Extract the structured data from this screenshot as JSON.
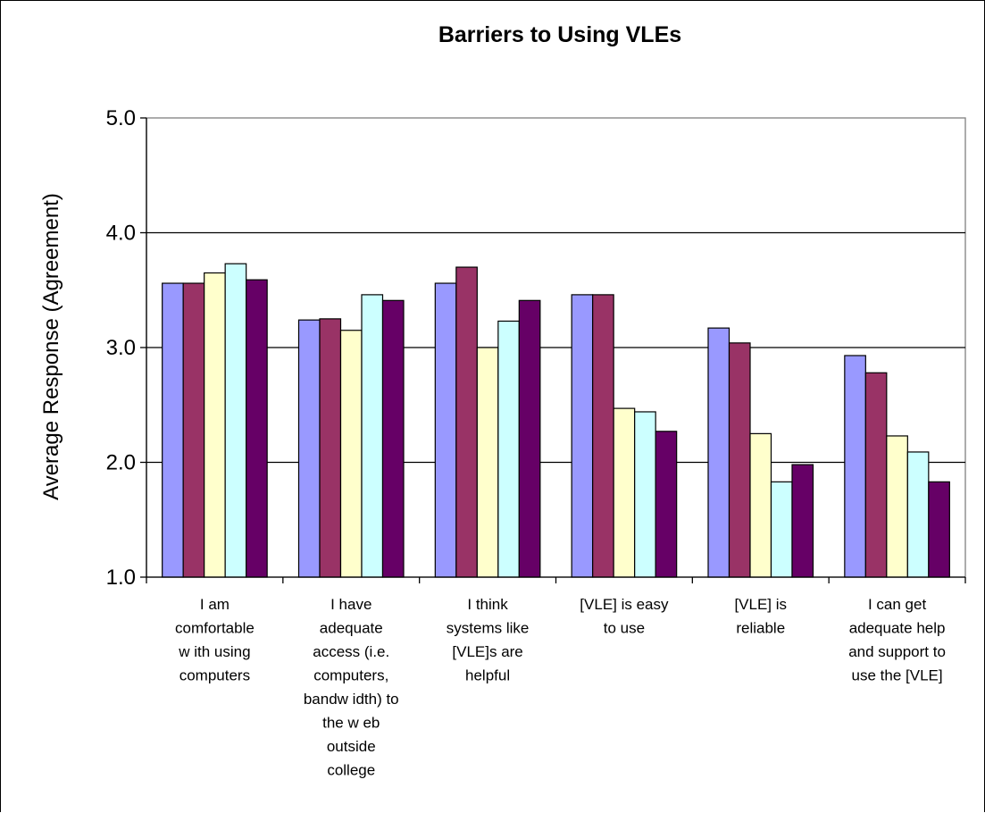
{
  "chart_data": {
    "type": "bar",
    "title": "Barriers to Using VLEs",
    "ylabel": "Average Response (Agreement)",
    "xlabel": "",
    "ylim": [
      1.0,
      5.0
    ],
    "yticks": [
      "1.0",
      "2.0",
      "3.0",
      "4.0",
      "5.0"
    ],
    "grid": true,
    "legend": "none",
    "categories": [
      [
        "I am",
        "comfortable",
        "w ith using",
        "computers"
      ],
      [
        "I have",
        "adequate",
        "access (i.e.",
        "computers,",
        "bandw idth) to",
        "the w eb",
        "outside",
        "college"
      ],
      [
        "I think",
        "systems like",
        "[VLE]s are",
        "helpful"
      ],
      [
        "[VLE] is easy",
        "to use"
      ],
      [
        "[VLE] is",
        "reliable"
      ],
      [
        "I can get",
        "adequate help",
        "and support to",
        "use the [VLE]"
      ]
    ],
    "series": [
      {
        "color": "#9999ff",
        "values": [
          3.56,
          3.24,
          3.56,
          3.46,
          3.17,
          2.93
        ]
      },
      {
        "color": "#993366",
        "values": [
          3.56,
          3.25,
          3.7,
          3.46,
          3.04,
          2.78
        ]
      },
      {
        "color": "#ffffcc",
        "values": [
          3.65,
          3.15,
          3.0,
          2.47,
          2.25,
          2.23
        ]
      },
      {
        "color": "#ccffff",
        "values": [
          3.73,
          3.46,
          3.23,
          2.44,
          1.83,
          2.09
        ]
      },
      {
        "color": "#660066",
        "values": [
          3.59,
          3.41,
          3.41,
          2.27,
          1.98,
          1.83
        ]
      }
    ]
  }
}
